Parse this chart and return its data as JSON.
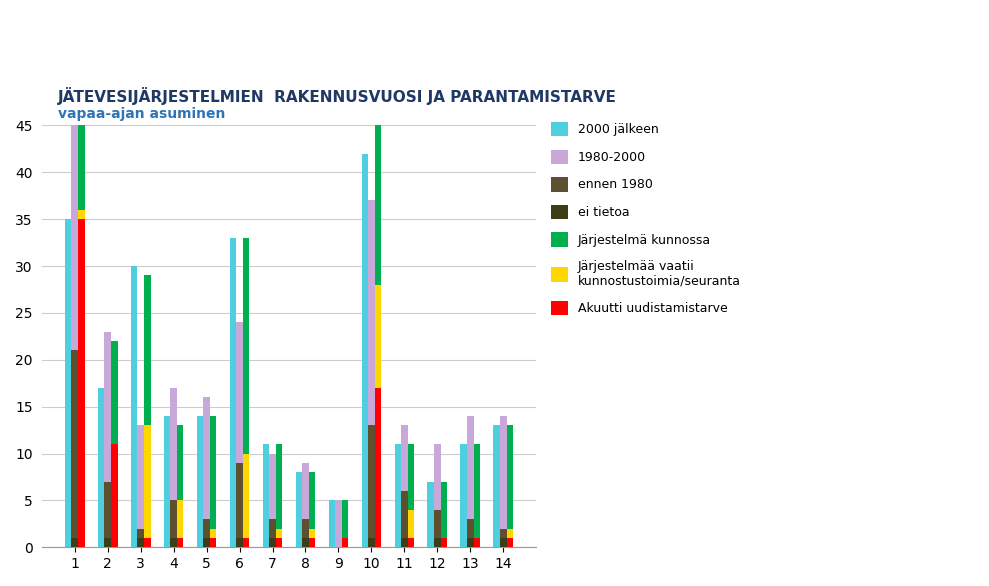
{
  "title": "JÄTEVESIJÄRJESTELMIEN  RAKENNUSVUOSI JA PARANTAMISTARVE",
  "subtitle": "vapaa-ajan asuminen",
  "categories": [
    1,
    2,
    3,
    4,
    5,
    6,
    7,
    8,
    9,
    10,
    11,
    12,
    13,
    14
  ],
  "bar1_cyan": [
    35,
    17,
    30,
    14,
    14,
    33,
    11,
    8,
    5,
    42,
    11,
    7,
    11,
    13
  ],
  "bar2_purple": [
    34,
    16,
    11,
    12,
    13,
    15,
    7,
    6,
    5,
    24,
    7,
    7,
    11,
    12
  ],
  "bar2_dark_brown": [
    20,
    6,
    1,
    4,
    2,
    8,
    2,
    2,
    0,
    12,
    5,
    3,
    2,
    1
  ],
  "bar2_dark_olive": [
    1,
    1,
    1,
    1,
    1,
    1,
    1,
    1,
    0,
    1,
    1,
    1,
    1,
    1
  ],
  "bar3_green": [
    29,
    11,
    16,
    8,
    12,
    23,
    9,
    6,
    4,
    24,
    7,
    6,
    10,
    11
  ],
  "bar3_yellow": [
    1,
    0,
    12,
    4,
    1,
    9,
    1,
    1,
    0,
    11,
    3,
    0,
    0,
    1
  ],
  "bar3_red": [
    35,
    11,
    1,
    1,
    1,
    1,
    1,
    1,
    1,
    17,
    1,
    1,
    1,
    1
  ],
  "color_cyan": "#4DCFDF",
  "color_purple": "#C8A8D8",
  "color_dark_brown": "#5C5030",
  "color_dark_olive": "#3D3D1A",
  "color_green": "#00B050",
  "color_yellow": "#FFD700",
  "color_red": "#FF0000",
  "ylim": [
    0,
    45
  ],
  "yticks": [
    0,
    5,
    10,
    15,
    20,
    25,
    30,
    35,
    40,
    45
  ],
  "legend_labels": [
    "2000 jälkeen",
    "1980-2000",
    "ennen 1980",
    "ei tietoa",
    "Järjestelmä kunnossa",
    "Järjestelmää vaatii\nkunnostustoimia/seuranta",
    "Akuutti uudistamistarve"
  ],
  "legend_colors": [
    "#4DCFDF",
    "#C8A8D8",
    "#5C5030",
    "#3D3D1A",
    "#00B050",
    "#FFD700",
    "#FF0000"
  ],
  "title_color": "#1F3864",
  "subtitle_color": "#2E75B6",
  "background_color": "#FFFFFF",
  "grid_color": "#CCCCCC"
}
